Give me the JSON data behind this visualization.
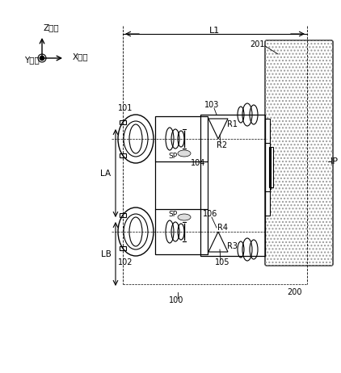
{
  "bg_color": "#ffffff",
  "line_color": "#000000",
  "hatch_color": "#aaaaaa",
  "fig_width": 4.22,
  "fig_height": 4.62,
  "dpi": 100,
  "labels": {
    "Z": "Z方向",
    "X": "X方向",
    "Y": "Y方向",
    "L1": "L1",
    "LA": "LA",
    "LB": "LB",
    "IP": "IP",
    "n101": "101",
    "n102": "102",
    "n103": "103",
    "n104": "104",
    "n105": "105",
    "n106": "106",
    "n100": "100",
    "n200": "200",
    "n201": "201",
    "R1": "R1",
    "R2": "R2",
    "R3": "R3",
    "R4": "R4",
    "SP": "SP"
  }
}
